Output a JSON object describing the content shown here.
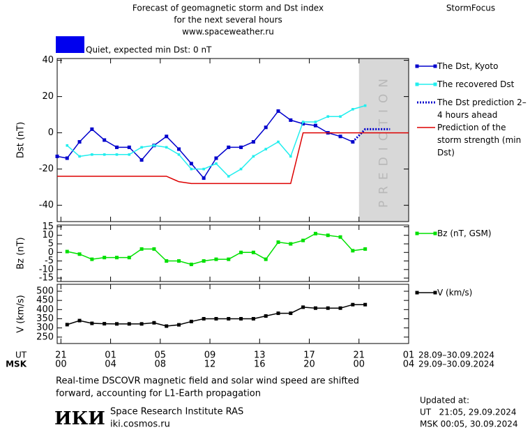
{
  "header": {
    "title_lines": [
      "Forecast of geomagnetic storm and Dst index",
      "for the next several hours",
      "www.spaceweather.ru"
    ],
    "brand": "StormFocus"
  },
  "quiet": {
    "color": "#0000ee",
    "label": "Quiet, expected min Dst: 0 nT"
  },
  "x_axis": {
    "xlim": [
      -0.3,
      28
    ],
    "ut_label": "UT",
    "msk_label": "MSK",
    "xticks": [
      {
        "value": 0,
        "label": "21"
      },
      {
        "value": 4,
        "label": "01"
      },
      {
        "value": 8,
        "label": "05"
      },
      {
        "value": 12,
        "label": "09"
      },
      {
        "value": 16,
        "label": "13"
      },
      {
        "value": 20,
        "label": "17"
      },
      {
        "value": 24,
        "label": "21"
      },
      {
        "value": 28,
        "label": "01"
      }
    ],
    "msk_ticks": [
      "00",
      "04",
      "08",
      "12",
      "16",
      "20",
      "00",
      "04"
    ],
    "ut_dates": "28.09–30.09.2024",
    "msk_dates": "29.09–30.09.2024"
  },
  "chart_data": [
    {
      "type": "line",
      "ylabel": "Dst (nT)",
      "ylim": [
        -49,
        41
      ],
      "yticks": [
        40,
        20,
        0,
        -20,
        -40
      ],
      "prediction_zone": [
        24,
        28
      ],
      "prediction_label": "PREDICTION",
      "series": [
        {
          "name": "The Dst, Kyoto",
          "color": "#0000cc",
          "style": "marker",
          "x": [
            -0.3,
            0.5,
            1.5,
            2.5,
            3.5,
            4.5,
            5.5,
            6.5,
            7.5,
            8.5,
            9.5,
            10.5,
            11.5,
            12.5,
            13.5,
            14.5,
            15.5,
            16.5,
            17.5,
            18.5,
            19.5,
            20.5,
            21.5,
            22.5,
            23.5
          ],
          "values": [
            -13,
            -14,
            -5,
            2,
            -4,
            -8,
            -8,
            -15,
            -7,
            -2,
            -9,
            -17,
            -25,
            -14,
            -8,
            -8,
            -5,
            3,
            12,
            7,
            5,
            4,
            0,
            -2,
            -5
          ]
        },
        {
          "name": "The recovered Dst",
          "color": "#22eeee",
          "style": "marker-small",
          "x": [
            0.5,
            1.5,
            2.5,
            3.5,
            4.5,
            5.5,
            6.5,
            7.5,
            8.5,
            9.5,
            10.5,
            11.5,
            12.5,
            13.5,
            14.5,
            15.5,
            16.5,
            17.5,
            18.5,
            19.5,
            20.5,
            21.5,
            22.5,
            23.5,
            24.5
          ],
          "values": [
            -7,
            -13,
            -12,
            -12,
            -12,
            -12,
            -8,
            -7,
            -8,
            -12,
            -20,
            -20,
            -17,
            -24,
            -20,
            -13,
            -9,
            -5,
            -13,
            6,
            6,
            9,
            9,
            13,
            15
          ]
        },
        {
          "name": "The Dst prediction 2–4 hours ahead",
          "color": "#0000cc",
          "style": "dotted",
          "x": [
            23.5,
            24.5,
            26.5
          ],
          "values": [
            -5,
            2,
            2
          ]
        },
        {
          "name": "Prediction of the storm strength (min Dst)",
          "color": "#dd0000",
          "style": "line",
          "x": [
            -0.3,
            8.5,
            9.5,
            10.5,
            18.5,
            19.5,
            28
          ],
          "values": [
            -24,
            -24,
            -27,
            -28,
            -28,
            0,
            0
          ]
        }
      ]
    },
    {
      "type": "line",
      "ylabel": "Bz (nT)",
      "ylim": [
        -17,
        16
      ],
      "yticks": [
        15,
        10,
        5,
        0,
        -5,
        -10,
        -15
      ],
      "series": [
        {
          "name": "Bz (nT, GSM)",
          "color": "#00e000",
          "style": "marker",
          "x": [
            0.5,
            1.5,
            2.5,
            3.5,
            4.5,
            5.5,
            6.5,
            7.5,
            8.5,
            9.5,
            10.5,
            11.5,
            12.5,
            13.5,
            14.5,
            15.5,
            16.5,
            17.5,
            18.5,
            19.5,
            20.5,
            21.5,
            22.5,
            23.5,
            24.5
          ],
          "values": [
            0.5,
            -1,
            -4,
            -3,
            -3,
            -3,
            2,
            2,
            -5,
            -5,
            -7,
            -5,
            -4,
            -4,
            0,
            0,
            -4,
            6,
            5,
            7,
            11,
            10,
            9,
            1,
            2
          ]
        }
      ]
    },
    {
      "type": "line",
      "ylabel": "V (km/s)",
      "ylim": [
        215,
        538
      ],
      "yticks": [
        500,
        450,
        400,
        350,
        300,
        250
      ],
      "series": [
        {
          "name": "V (km/s)",
          "color": "#000000",
          "style": "marker",
          "x": [
            0.5,
            1.5,
            2.5,
            3.5,
            4.5,
            5.5,
            6.5,
            7.5,
            8.5,
            9.5,
            10.5,
            11.5,
            12.5,
            13.5,
            14.5,
            15.5,
            16.5,
            17.5,
            18.5,
            19.5,
            20.5,
            21.5,
            22.5,
            23.5,
            24.5
          ],
          "values": [
            318,
            340,
            325,
            323,
            322,
            322,
            322,
            328,
            310,
            317,
            335,
            350,
            350,
            350,
            350,
            350,
            365,
            380,
            380,
            413,
            408,
            408,
            408,
            427,
            427
          ]
        }
      ]
    }
  ],
  "footer": {
    "note_lines": [
      "Real-time DSCOVR magnetic field and solar wind speed are shifted",
      "forward, accounting for L1-Earth propagation"
    ],
    "logo": "ИКИ",
    "institute": "Space Research Institute RAS",
    "url": "iki.cosmos.ru",
    "updated_label": "Updated at:",
    "updated_ut": "UT   21:05, 29.09.2024",
    "updated_msk": "MSK 00:05, 30.09.2024"
  }
}
